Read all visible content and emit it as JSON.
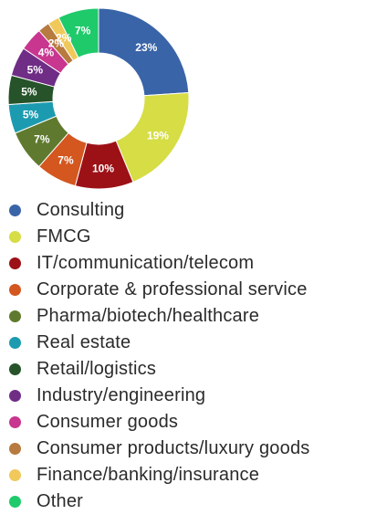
{
  "chart_data": {
    "type": "pie",
    "donut": true,
    "title": "",
    "labels": [
      "Consulting",
      "FMCG",
      "IT/communication/telecom",
      "Corporate & professional service",
      "Pharma/biotech/healthcare",
      "Real estate",
      "Retail/logistics",
      "Industry/engineering",
      "Consumer goods",
      "Consumer products/luxury goods",
      "Finance/banking/insurance",
      "Other"
    ],
    "values": [
      23,
      19,
      10,
      7,
      7,
      5,
      5,
      5,
      4,
      2,
      2,
      7
    ],
    "value_labels": [
      "23%",
      "19%",
      "10%",
      "7%",
      "7%",
      "5%",
      "5%",
      "5%",
      "4%",
      "2%",
      "2%",
      "7%"
    ],
    "colors": [
      "#3a64a8",
      "#d6dd45",
      "#9c1116",
      "#d3571f",
      "#5f7a2e",
      "#1c9bb0",
      "#26532a",
      "#6f2d86",
      "#c8368f",
      "#b77a3f",
      "#f0c95a",
      "#1fca6b"
    ],
    "legend_position": "bottom-left"
  }
}
